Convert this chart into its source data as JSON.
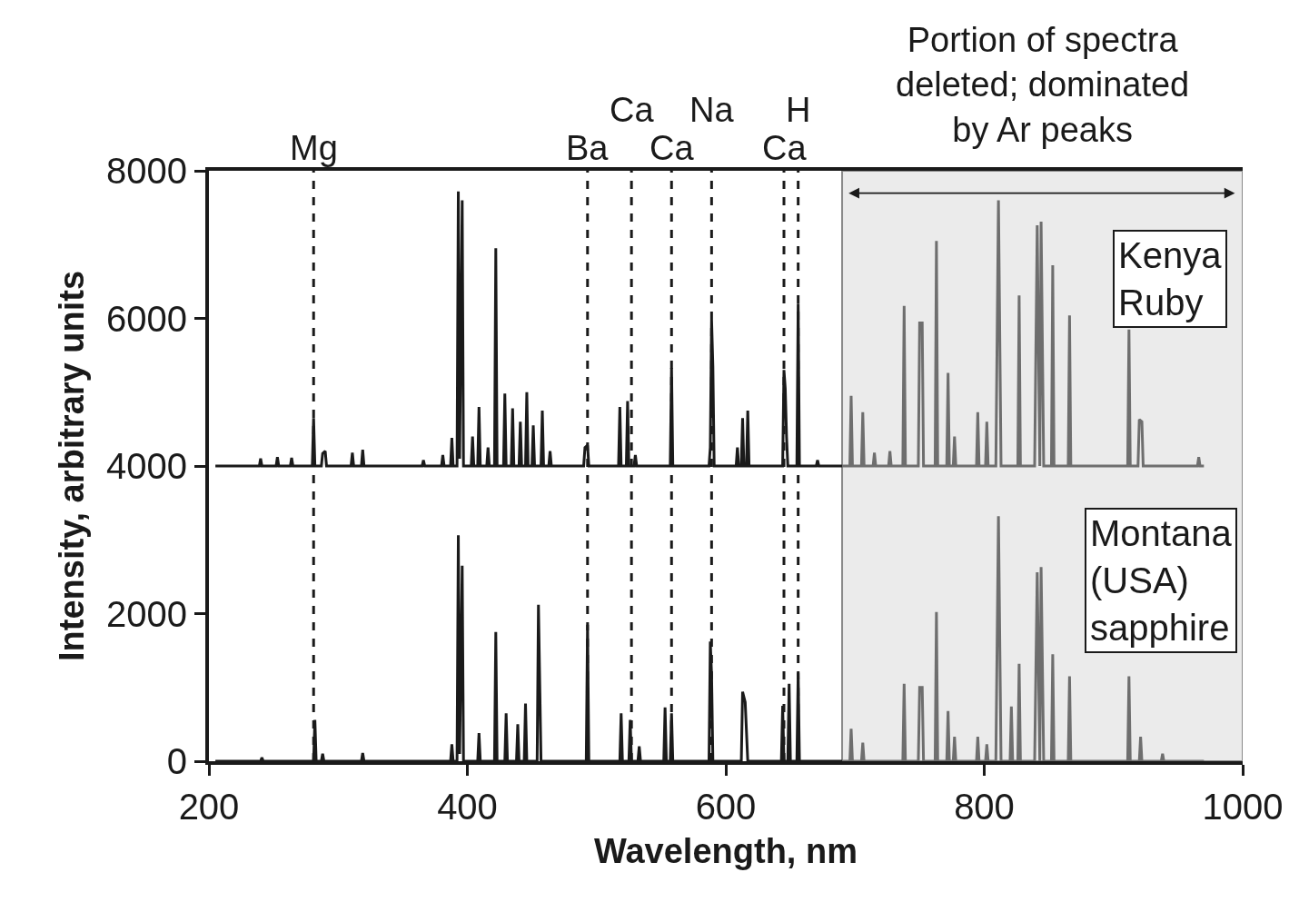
{
  "chart_data": {
    "type": "line",
    "xlabel": "Wavelength, nm",
    "ylabel": "Intensity, arbitrary units",
    "xlim": [
      200,
      1000
    ],
    "xticks": [
      200,
      400,
      600,
      800,
      1000
    ],
    "ylim": [
      0,
      8000
    ],
    "yticks": [
      0,
      2000,
      4000,
      6000,
      8000
    ],
    "grid": false,
    "marker": "none",
    "line_style": "solid",
    "series": [
      {
        "color": "#1a1a1a",
        "x": [
          205,
          239,
          240,
          241,
          252,
          253,
          254,
          263,
          264,
          265,
          280,
          281,
          282,
          287,
          288,
          290,
          291,
          310,
          311,
          312,
          318,
          319,
          320,
          365,
          366,
          367,
          380,
          381,
          382,
          387,
          388,
          389,
          392,
          393,
          394,
          396,
          397,
          403,
          404,
          405,
          408,
          409,
          410,
          415,
          416,
          417,
          421,
          422,
          423,
          428,
          429,
          430,
          434,
          435,
          436,
          440,
          441,
          442,
          445,
          446,
          447,
          450,
          451,
          452,
          457,
          458,
          459,
          463,
          464,
          465,
          490,
          491,
          493,
          494,
          517,
          518,
          519,
          523,
          524,
          525,
          529,
          530,
          531,
          557,
          558,
          559,
          587,
          588,
          589,
          590,
          591,
          608,
          609,
          610,
          612,
          613,
          614,
          616,
          617,
          618,
          644,
          645,
          646,
          647,
          648,
          655,
          656,
          657,
          670,
          671,
          672,
          690
        ],
        "values": [
          4000,
          4000,
          4100,
          4000,
          4000,
          4120,
          4000,
          4000,
          4110,
          4000,
          4000,
          4650,
          4000,
          4000,
          4170,
          4200,
          4000,
          4000,
          4180,
          4000,
          4000,
          4220,
          4000,
          4000,
          4080,
          4000,
          4000,
          4150,
          4000,
          4000,
          4380,
          4000,
          4000,
          7720,
          4100,
          7600,
          4000,
          4000,
          4400,
          4000,
          4000,
          4800,
          4000,
          4000,
          4250,
          4000,
          4000,
          6950,
          4000,
          4000,
          4980,
          4000,
          4000,
          4780,
          4000,
          4000,
          4600,
          4000,
          4000,
          5000,
          4000,
          4000,
          4550,
          4000,
          4000,
          4750,
          4000,
          4000,
          4200,
          4000,
          4000,
          4250,
          4280,
          4000,
          4000,
          4800,
          4000,
          4000,
          4880,
          4000,
          4000,
          4150,
          4000,
          4000,
          5330,
          4000,
          4000,
          4250,
          5980,
          5350,
          4000,
          4000,
          4250,
          4000,
          4000,
          4650,
          4000,
          4000,
          4750,
          4000,
          4000,
          5300,
          5050,
          4400,
          4000,
          4000,
          6200,
          4000,
          4000,
          4080,
          4000,
          4000
        ]
      },
      {
        "color": "#6e6e6e",
        "x": [
          690,
          696,
          697,
          698,
          705,
          706,
          707,
          714,
          715,
          716,
          726,
          727,
          728,
          737,
          738,
          739,
          749,
          750,
          752,
          753,
          762,
          763,
          764,
          771,
          772,
          773,
          776,
          777,
          778,
          794,
          795,
          796,
          801,
          802,
          803,
          809,
          811,
          813,
          826,
          827,
          828,
          839,
          841,
          843,
          844,
          846,
          852,
          853,
          854,
          865,
          866,
          867,
          911,
          912,
          913,
          919,
          920,
          922,
          923,
          965,
          966,
          967,
          970
        ],
        "values": [
          4000,
          4000,
          4950,
          4000,
          4000,
          4730,
          4000,
          4000,
          4180,
          4000,
          4000,
          4200,
          4000,
          4000,
          6170,
          4000,
          4000,
          5940,
          5940,
          4000,
          4000,
          7050,
          4000,
          4000,
          5260,
          4000,
          4000,
          4400,
          4000,
          4000,
          4730,
          4000,
          4000,
          4600,
          4000,
          4000,
          7600,
          4000,
          4000,
          6310,
          4000,
          4000,
          7260,
          4000,
          7310,
          4000,
          4000,
          6720,
          4000,
          4000,
          6040,
          4000,
          4000,
          5850,
          4000,
          4000,
          4630,
          4600,
          4000,
          4000,
          4120,
          4000,
          4000
        ]
      },
      {
        "color": "#1a1a1a",
        "x": [
          205,
          240,
          241,
          242,
          281,
          282,
          283,
          287,
          288,
          289,
          318,
          319,
          320,
          387,
          388,
          389,
          392,
          393,
          394,
          396,
          397,
          408,
          409,
          410,
          421,
          422,
          423,
          429,
          430,
          431,
          438,
          439,
          440,
          444,
          445,
          446,
          454,
          455,
          457,
          492,
          493,
          494,
          518,
          519,
          520,
          525,
          526,
          527,
          532,
          533,
          534,
          552,
          553,
          554,
          557,
          558,
          559,
          587,
          588,
          589,
          590,
          612,
          613,
          615,
          617,
          643,
          644,
          645,
          648,
          649,
          650,
          655,
          656,
          657,
          690
        ],
        "values": [
          0,
          0,
          50,
          0,
          0,
          560,
          0,
          0,
          100,
          0,
          0,
          110,
          0,
          0,
          230,
          0,
          0,
          3060,
          100,
          2650,
          0,
          0,
          380,
          0,
          0,
          1750,
          0,
          0,
          650,
          0,
          0,
          500,
          0,
          0,
          780,
          0,
          0,
          2120,
          0,
          0,
          1850,
          0,
          0,
          650,
          0,
          0,
          560,
          0,
          0,
          200,
          0,
          0,
          730,
          0,
          0,
          650,
          0,
          0,
          1620,
          1170,
          0,
          0,
          940,
          800,
          0,
          0,
          750,
          0,
          0,
          1050,
          0,
          0,
          1200,
          0,
          0
        ]
      },
      {
        "color": "#6e6e6e",
        "x": [
          690,
          696,
          697,
          698,
          705,
          706,
          707,
          737,
          738,
          739,
          749,
          750,
          752,
          753,
          762,
          763,
          764,
          771,
          772,
          773,
          776,
          777,
          778,
          794,
          795,
          796,
          801,
          802,
          803,
          809,
          811,
          813,
          820,
          821,
          822,
          826,
          827,
          828,
          839,
          841,
          843,
          844,
          846,
          852,
          853,
          854,
          865,
          866,
          867,
          911,
          912,
          913,
          920,
          921,
          922,
          937,
          938,
          939,
          970
        ],
        "values": [
          0,
          0,
          440,
          0,
          0,
          250,
          0,
          0,
          1050,
          0,
          0,
          1000,
          1000,
          0,
          0,
          2020,
          0,
          0,
          680,
          0,
          0,
          330,
          0,
          0,
          330,
          0,
          0,
          230,
          0,
          0,
          3320,
          0,
          0,
          740,
          0,
          0,
          1320,
          0,
          0,
          2560,
          0,
          2630,
          0,
          0,
          1450,
          0,
          0,
          1150,
          0,
          0,
          1150,
          0,
          0,
          330,
          0,
          0,
          100,
          0,
          0
        ]
      }
    ],
    "ref_lines": [
      {
        "axis": "x",
        "value": 281,
        "label": "Mg",
        "line_style": "dashed",
        "color": "#1a1a1a"
      },
      {
        "axis": "x",
        "value": 493,
        "label": "Ba",
        "line_style": "dashed",
        "color": "#1a1a1a"
      },
      {
        "axis": "x",
        "value": 527,
        "label": "Ca",
        "line_style": "dashed",
        "color": "#1a1a1a"
      },
      {
        "axis": "x",
        "value": 558,
        "label": "Ca",
        "line_style": "dashed",
        "color": "#1a1a1a"
      },
      {
        "axis": "x",
        "value": 589,
        "label": "Na",
        "line_style": "dashed",
        "color": "#1a1a1a"
      },
      {
        "axis": "x",
        "value": 645,
        "label": "Ca",
        "line_style": "dashed",
        "color": "#1a1a1a"
      },
      {
        "axis": "x",
        "value": 656,
        "label": "H",
        "line_style": "dashed",
        "color": "#1a1a1a"
      }
    ],
    "bands": [
      {
        "axis": "x",
        "from": 690,
        "to": 1000,
        "label": "Portion of spectra\ndeleted; dominated\nby Ar peaks",
        "color": "#ebebeb"
      }
    ],
    "annotations": [
      "Kenya\nRuby",
      "Montana\n(USA)\nsapphire"
    ]
  }
}
